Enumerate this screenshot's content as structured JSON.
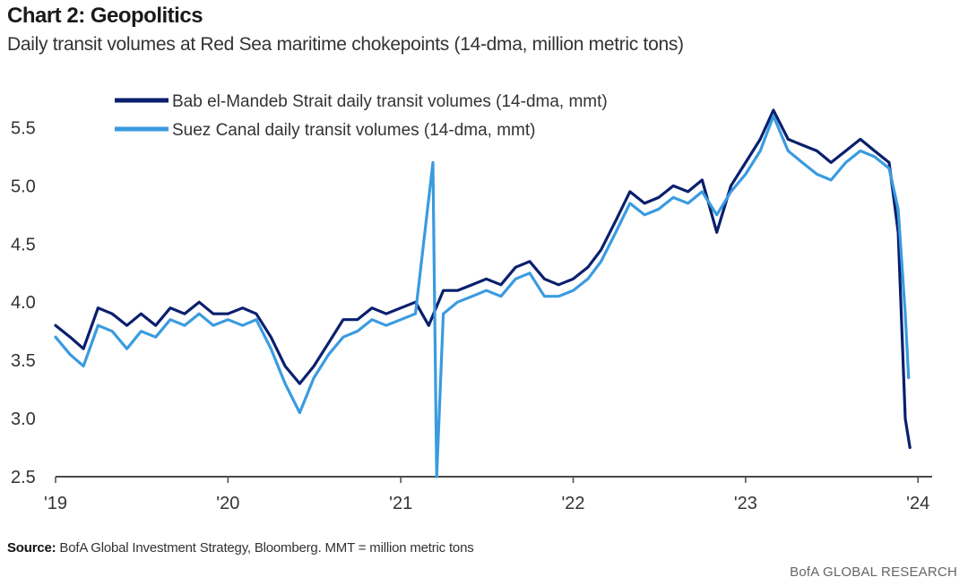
{
  "header": {
    "title": "Chart 2: Geopolitics",
    "subtitle": "Daily transit volumes at Red Sea maritime chokepoints (14-dma, million metric tons)"
  },
  "footer": {
    "source_label": "Source:",
    "source_text": "BofA Global Investment Strategy, Bloomberg. MMT = million metric tons",
    "brand": "BofA GLOBAL RESEARCH"
  },
  "chart_data": {
    "type": "line",
    "title": "Chart 2: Geopolitics",
    "subtitle": "Daily transit volumes at Red Sea maritime chokepoints (14-dma, million metric tons)",
    "xlabel": "",
    "ylabel": "",
    "ylim": [
      2.5,
      5.75
    ],
    "xlim": [
      "2019-01-01",
      "2024-01-31"
    ],
    "y_ticks": [
      "2.5",
      "3.0",
      "3.5",
      "4.0",
      "4.5",
      "5.0",
      "5.5"
    ],
    "y_tick_values": [
      2.5,
      3.0,
      3.5,
      4.0,
      4.5,
      5.0,
      5.5
    ],
    "x_ticks": [
      "'19",
      "'20",
      "'21",
      "'22",
      "'23",
      "'24"
    ],
    "x_tick_dates": [
      "2019-01-01",
      "2020-01-01",
      "2021-01-01",
      "2022-01-01",
      "2023-01-01",
      "2024-01-01"
    ],
    "grid": false,
    "legend_position": "top-left",
    "series": [
      {
        "name": "Bab el-Mandeb Strait daily transit volumes (14-dma, mmt)",
        "color": "#0a1f6e",
        "points": [
          [
            "2019-01-01",
            3.8
          ],
          [
            "2019-02-01",
            3.7
          ],
          [
            "2019-03-01",
            3.6
          ],
          [
            "2019-04-01",
            3.95
          ],
          [
            "2019-05-01",
            3.9
          ],
          [
            "2019-06-01",
            3.8
          ],
          [
            "2019-07-01",
            3.9
          ],
          [
            "2019-08-01",
            3.8
          ],
          [
            "2019-09-01",
            3.95
          ],
          [
            "2019-10-01",
            3.9
          ],
          [
            "2019-11-01",
            4.0
          ],
          [
            "2019-12-01",
            3.9
          ],
          [
            "2020-01-01",
            3.9
          ],
          [
            "2020-02-01",
            3.95
          ],
          [
            "2020-03-01",
            3.9
          ],
          [
            "2020-04-01",
            3.7
          ],
          [
            "2020-05-01",
            3.45
          ],
          [
            "2020-06-01",
            3.3
          ],
          [
            "2020-07-01",
            3.45
          ],
          [
            "2020-08-01",
            3.65
          ],
          [
            "2020-09-01",
            3.85
          ],
          [
            "2020-10-01",
            3.85
          ],
          [
            "2020-11-01",
            3.95
          ],
          [
            "2020-12-01",
            3.9
          ],
          [
            "2021-01-01",
            3.95
          ],
          [
            "2021-02-01",
            4.0
          ],
          [
            "2021-03-01",
            3.8
          ],
          [
            "2021-04-01",
            4.1
          ],
          [
            "2021-05-01",
            4.1
          ],
          [
            "2021-06-01",
            4.15
          ],
          [
            "2021-07-01",
            4.2
          ],
          [
            "2021-08-01",
            4.15
          ],
          [
            "2021-09-01",
            4.3
          ],
          [
            "2021-10-01",
            4.35
          ],
          [
            "2021-11-01",
            4.2
          ],
          [
            "2021-12-01",
            4.15
          ],
          [
            "2022-01-01",
            4.2
          ],
          [
            "2022-02-01",
            4.3
          ],
          [
            "2022-03-01",
            4.45
          ],
          [
            "2022-04-01",
            4.7
          ],
          [
            "2022-05-01",
            4.95
          ],
          [
            "2022-06-01",
            4.85
          ],
          [
            "2022-07-01",
            4.9
          ],
          [
            "2022-08-01",
            5.0
          ],
          [
            "2022-09-01",
            4.95
          ],
          [
            "2022-10-01",
            5.05
          ],
          [
            "2022-11-01",
            4.6
          ],
          [
            "2022-12-01",
            5.0
          ],
          [
            "2023-01-01",
            5.2
          ],
          [
            "2023-02-01",
            5.4
          ],
          [
            "2023-03-01",
            5.65
          ],
          [
            "2023-04-01",
            5.4
          ],
          [
            "2023-05-01",
            5.35
          ],
          [
            "2023-06-01",
            5.3
          ],
          [
            "2023-07-01",
            5.2
          ],
          [
            "2023-08-01",
            5.3
          ],
          [
            "2023-09-01",
            5.4
          ],
          [
            "2023-10-01",
            5.3
          ],
          [
            "2023-11-01",
            5.2
          ],
          [
            "2023-11-20",
            4.6
          ],
          [
            "2023-12-05",
            3.0
          ],
          [
            "2023-12-15",
            2.75
          ]
        ]
      },
      {
        "name": "Suez Canal daily transit volumes (14-dma, mmt)",
        "color": "#3a9be0",
        "points": [
          [
            "2019-01-01",
            3.7
          ],
          [
            "2019-02-01",
            3.55
          ],
          [
            "2019-03-01",
            3.45
          ],
          [
            "2019-04-01",
            3.8
          ],
          [
            "2019-05-01",
            3.75
          ],
          [
            "2019-06-01",
            3.6
          ],
          [
            "2019-07-01",
            3.75
          ],
          [
            "2019-08-01",
            3.7
          ],
          [
            "2019-09-01",
            3.85
          ],
          [
            "2019-10-01",
            3.8
          ],
          [
            "2019-11-01",
            3.9
          ],
          [
            "2019-12-01",
            3.8
          ],
          [
            "2020-01-01",
            3.85
          ],
          [
            "2020-02-01",
            3.8
          ],
          [
            "2020-03-01",
            3.85
          ],
          [
            "2020-04-01",
            3.6
          ],
          [
            "2020-05-01",
            3.3
          ],
          [
            "2020-06-01",
            3.05
          ],
          [
            "2020-07-01",
            3.35
          ],
          [
            "2020-08-01",
            3.55
          ],
          [
            "2020-09-01",
            3.7
          ],
          [
            "2020-10-01",
            3.75
          ],
          [
            "2020-11-01",
            3.85
          ],
          [
            "2020-12-01",
            3.8
          ],
          [
            "2021-01-01",
            3.85
          ],
          [
            "2021-02-01",
            3.9
          ],
          [
            "2021-03-10",
            5.2
          ],
          [
            "2021-03-18",
            2.5
          ],
          [
            "2021-04-01",
            3.9
          ],
          [
            "2021-05-01",
            4.0
          ],
          [
            "2021-06-01",
            4.05
          ],
          [
            "2021-07-01",
            4.1
          ],
          [
            "2021-08-01",
            4.05
          ],
          [
            "2021-09-01",
            4.2
          ],
          [
            "2021-10-01",
            4.25
          ],
          [
            "2021-11-01",
            4.05
          ],
          [
            "2021-12-01",
            4.05
          ],
          [
            "2022-01-01",
            4.1
          ],
          [
            "2022-02-01",
            4.2
          ],
          [
            "2022-03-01",
            4.35
          ],
          [
            "2022-04-01",
            4.6
          ],
          [
            "2022-05-01",
            4.85
          ],
          [
            "2022-06-01",
            4.75
          ],
          [
            "2022-07-01",
            4.8
          ],
          [
            "2022-08-01",
            4.9
          ],
          [
            "2022-09-01",
            4.85
          ],
          [
            "2022-10-01",
            4.95
          ],
          [
            "2022-11-01",
            4.75
          ],
          [
            "2022-12-01",
            4.95
          ],
          [
            "2023-01-01",
            5.1
          ],
          [
            "2023-02-01",
            5.3
          ],
          [
            "2023-03-01",
            5.6
          ],
          [
            "2023-04-01",
            5.3
          ],
          [
            "2023-05-01",
            5.2
          ],
          [
            "2023-06-01",
            5.1
          ],
          [
            "2023-07-01",
            5.05
          ],
          [
            "2023-08-01",
            5.2
          ],
          [
            "2023-09-01",
            5.3
          ],
          [
            "2023-10-01",
            5.25
          ],
          [
            "2023-11-01",
            5.15
          ],
          [
            "2023-11-20",
            4.8
          ],
          [
            "2023-12-05",
            3.9
          ],
          [
            "2023-12-12",
            3.35
          ]
        ]
      }
    ]
  }
}
